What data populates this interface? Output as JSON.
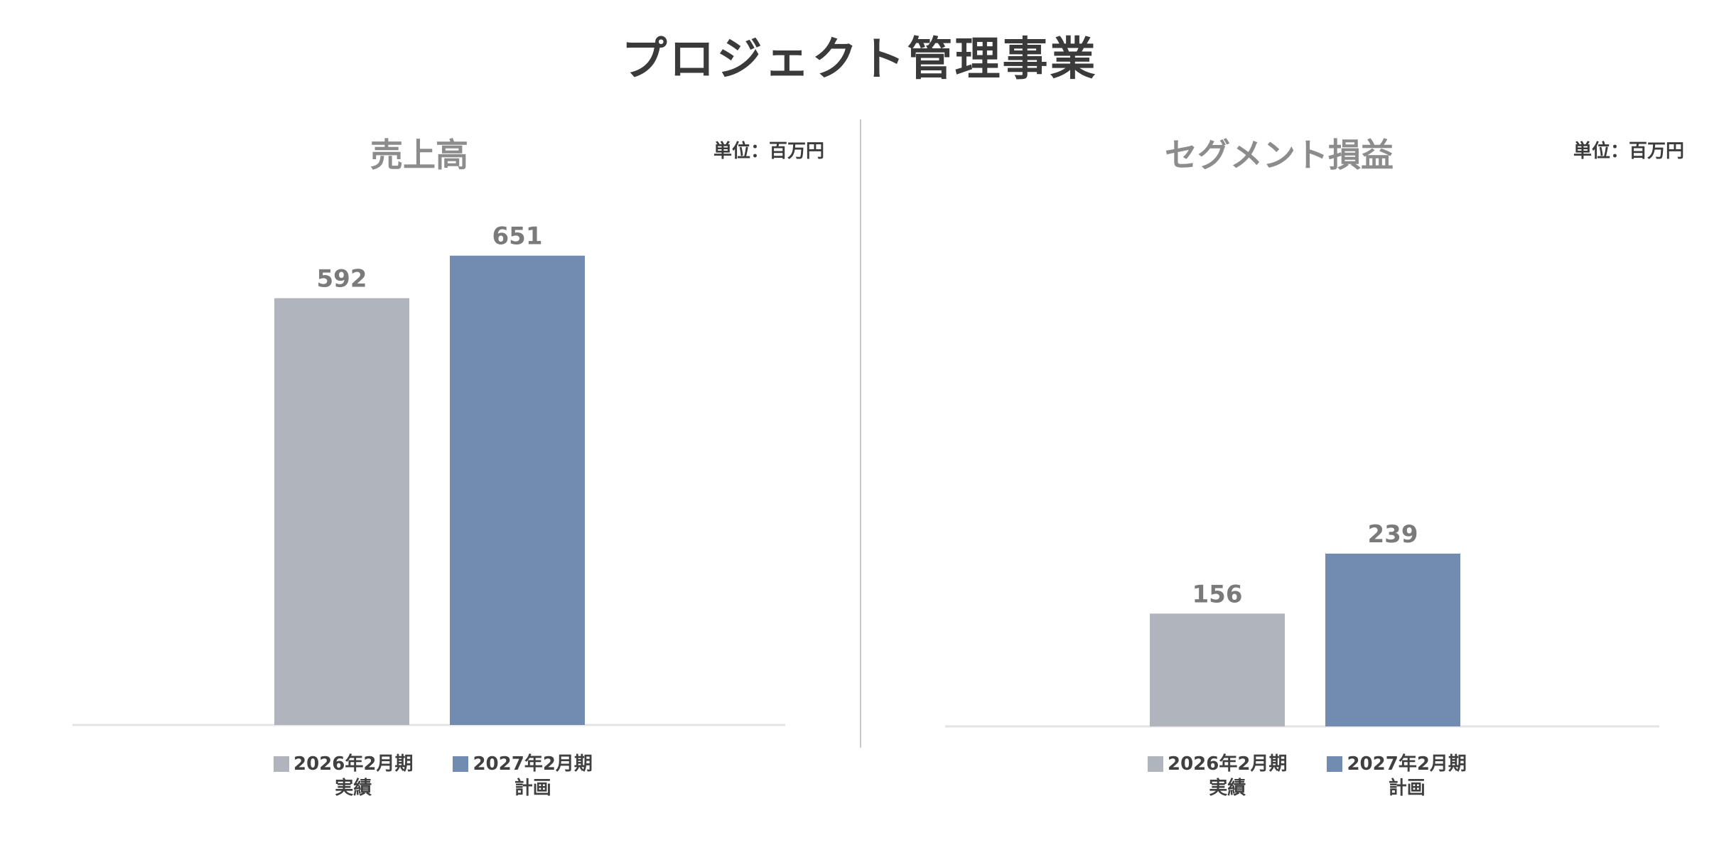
{
  "page": {
    "title": "プロジェクト管理事業"
  },
  "colors": {
    "actual": "#b0b4bd",
    "plan": "#728bb0",
    "label": "#7a7a7a",
    "axis": "#e3e3e3"
  },
  "legend": [
    {
      "line1": "2026年2月期",
      "line2": "実績",
      "color": "#b0b4bd"
    },
    {
      "line1": "2027年2月期",
      "line2": "計画",
      "color": "#728bb0"
    }
  ],
  "chart_data": [
    {
      "type": "bar",
      "title": "売上高",
      "unit": "単位：百万円",
      "categories": [
        "2026年2月期 実績",
        "2027年2月期 計画"
      ],
      "values": [
        592,
        651
      ],
      "ylim": [
        0,
        700
      ],
      "grid": false,
      "legend_position": "bottom"
    },
    {
      "type": "bar",
      "title": "セグメント損益",
      "unit": "単位：百万円",
      "categories": [
        "2026年2月期 実績",
        "2027年2月期 計画"
      ],
      "values": [
        156,
        239
      ],
      "ylim": [
        0,
        700
      ],
      "grid": false,
      "legend_position": "bottom"
    }
  ]
}
